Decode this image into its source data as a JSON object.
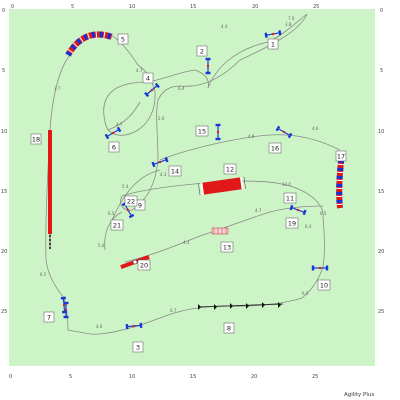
{
  "app": {
    "label": "Agility Plus"
  },
  "axes": {
    "x_ticks": [
      "0",
      "5",
      "10",
      "15",
      "20",
      "25"
    ],
    "y_ticks": [
      "0",
      "5",
      "10",
      "15",
      "20",
      "25"
    ]
  },
  "obstacles": [
    "1",
    "2",
    "3",
    "4",
    "5",
    "6",
    "7",
    "8",
    "9",
    "10",
    "11",
    "12",
    "13",
    "14",
    "15",
    "16",
    "17",
    "18",
    "19",
    "20",
    "21",
    "22"
  ],
  "distances": [
    "3.8",
    "4.4",
    "6.4",
    "4.7",
    "3.7",
    "4.7",
    "2.6",
    "4.8",
    "4.6",
    "5.4",
    "4.3",
    "6.4",
    "5.0",
    "4.3",
    "10.0",
    "4.7",
    "6.4",
    "6.5",
    "6.5",
    "4.6",
    "6.7",
    "7.0",
    "6.5",
    "6.5"
  ],
  "colors": {
    "field": "#cdf4c6",
    "path": "#8a8a8a",
    "jump_bar": "#1a38d8",
    "jump_wing": "#dd1f1f",
    "contact": "#e01818",
    "tunnel_a": "#1a2fd6",
    "tunnel_b": "#d91b1b"
  }
}
